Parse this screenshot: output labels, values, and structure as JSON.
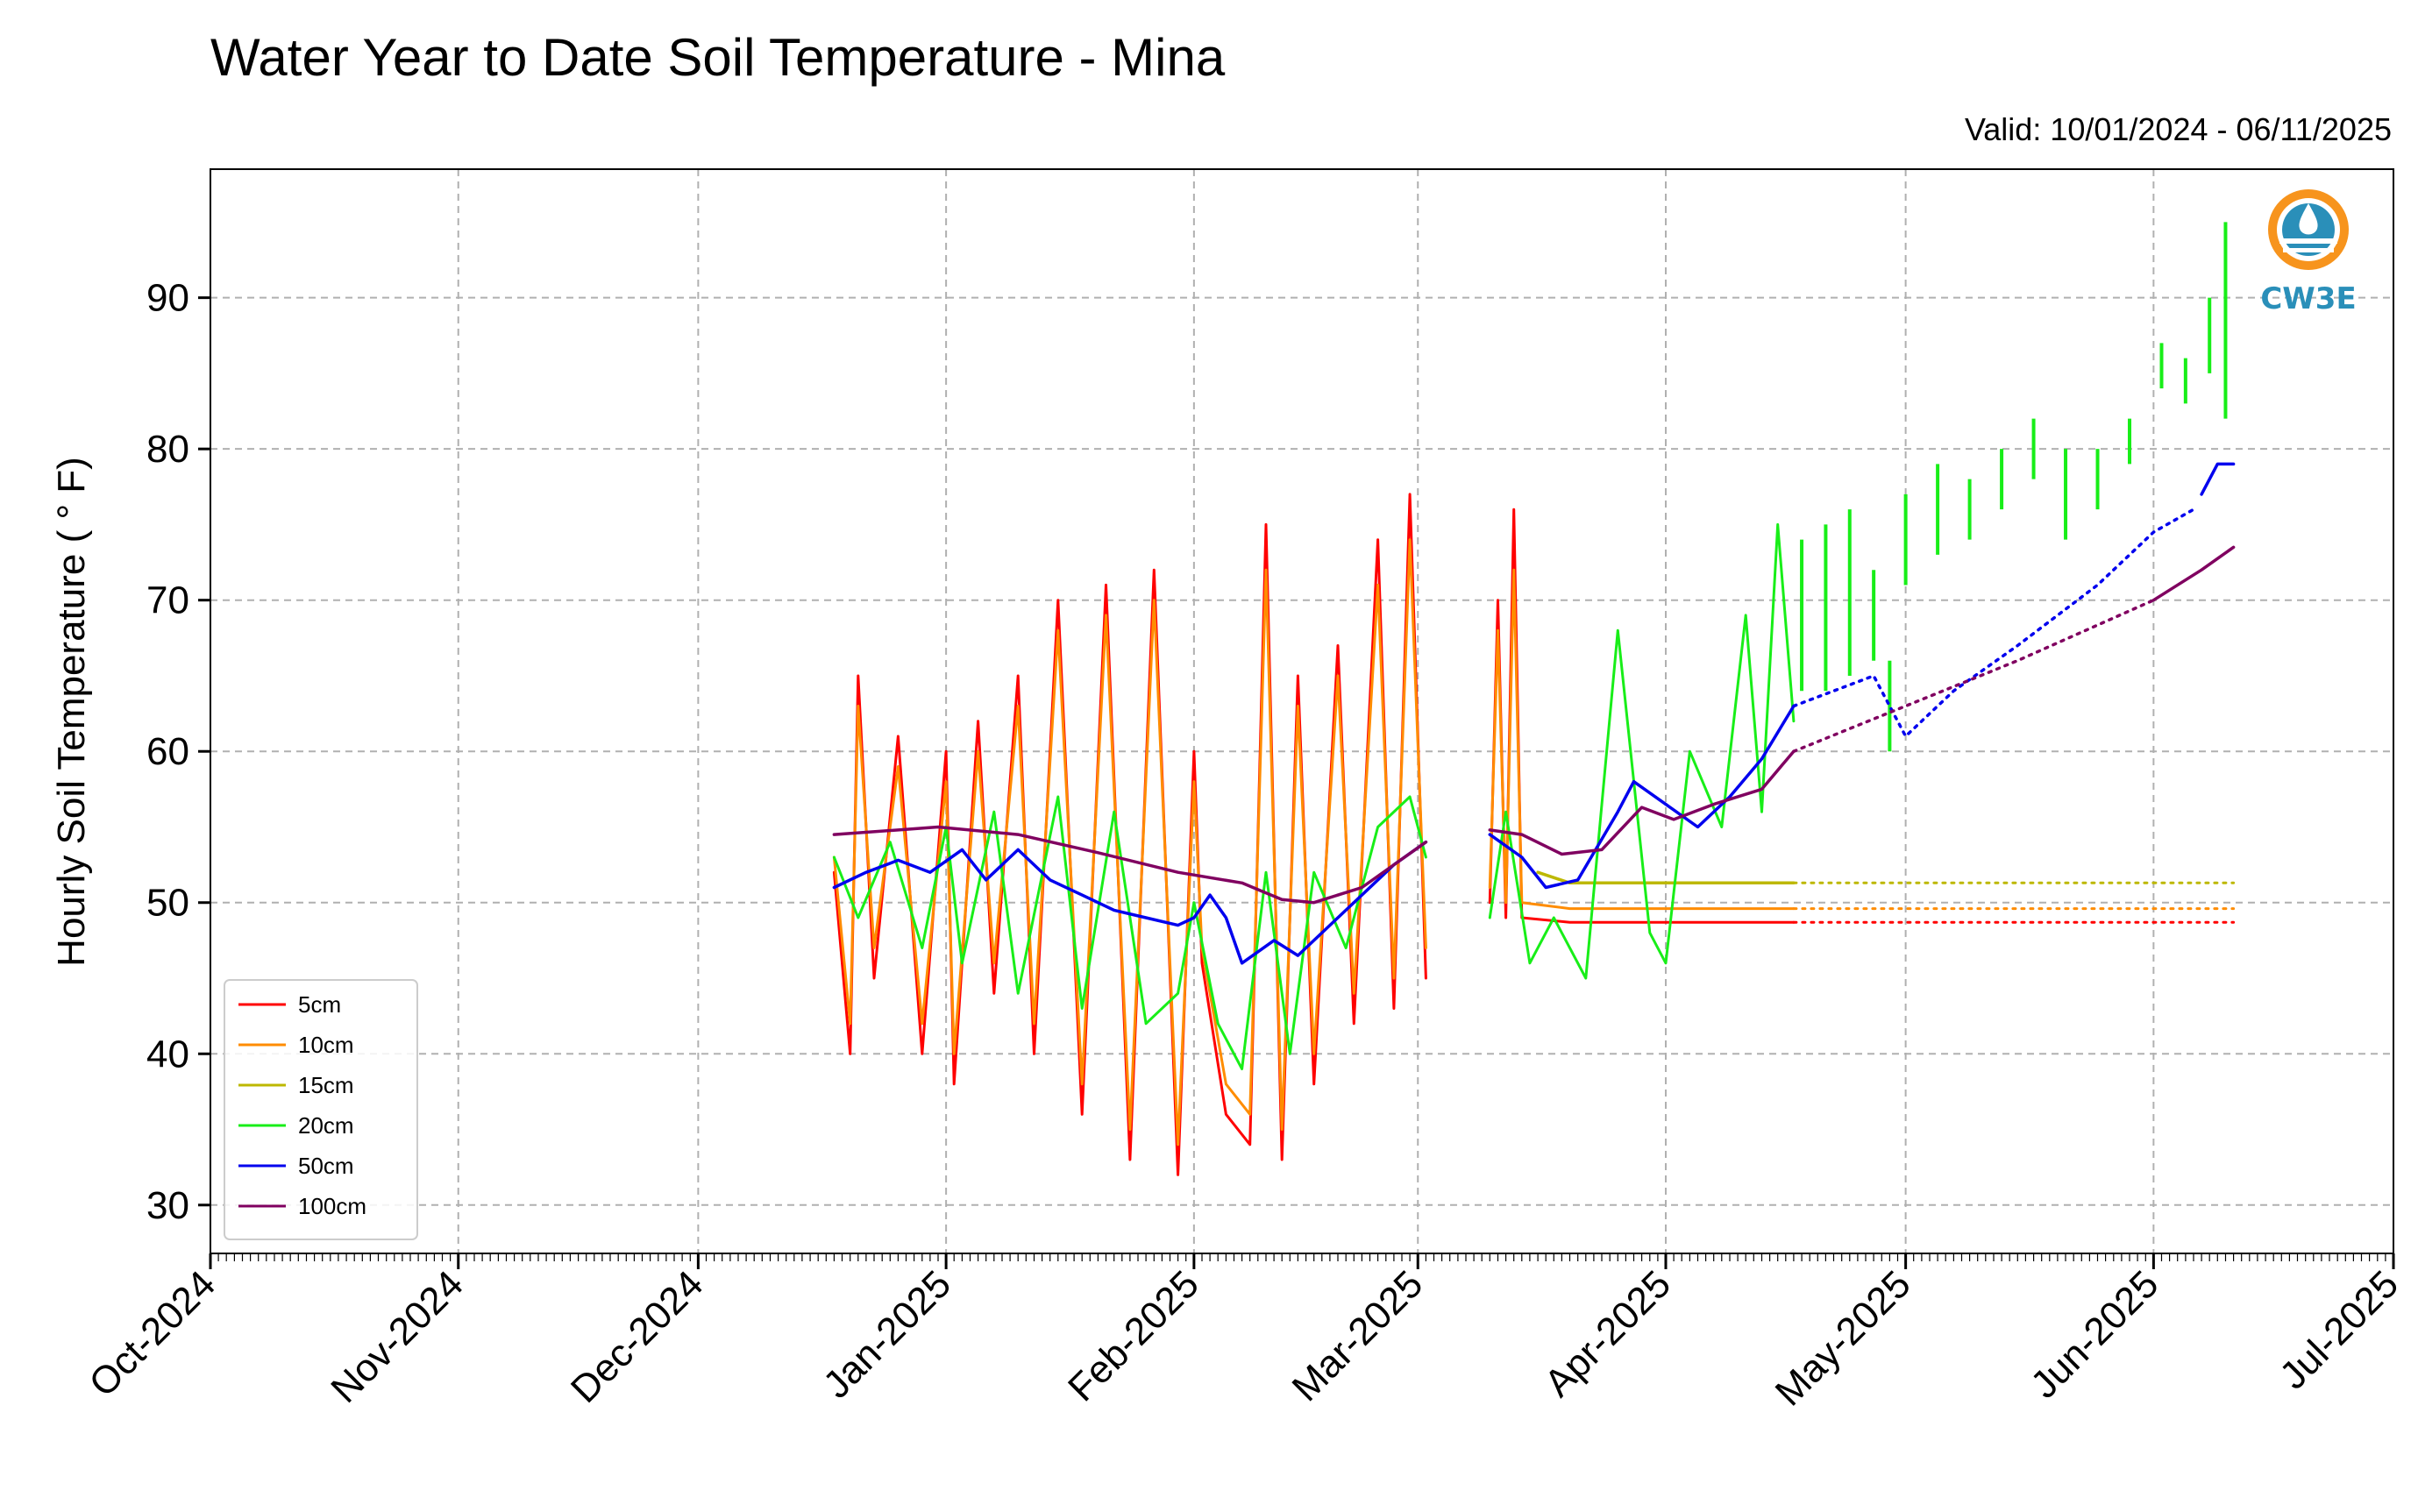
{
  "chart_data": {
    "type": "line",
    "title": "Water Year to Date Soil Temperature - Mina",
    "subtitle": "Valid: 10/01/2024 - 06/11/2025",
    "xlabel": "",
    "ylabel": "Hourly Soil Temperature ( ° F)",
    "ylim": [
      26.8,
      98.5
    ],
    "xlim": [
      "2024-10-01",
      "2025-07-01"
    ],
    "x_ticks": [
      "Oct-2024",
      "Nov-2024",
      "Dec-2024",
      "Jan-2025",
      "Feb-2025",
      "Mar-2025",
      "Apr-2025",
      "May-2025",
      "Jun-2025",
      "Jul-2025"
    ],
    "y_ticks": [
      30,
      40,
      50,
      60,
      70,
      80,
      90
    ],
    "grid": true,
    "legend_position": "lower-left",
    "logo": "CW3E",
    "series": [
      {
        "name": "5cm",
        "color": "#ff0000",
        "points": [
          [
            "2024-12-18",
            52
          ],
          [
            "2024-12-20",
            40
          ],
          [
            "2024-12-21",
            65
          ],
          [
            "2024-12-23",
            45
          ],
          [
            "2024-12-26",
            61
          ],
          [
            "2024-12-29",
            40
          ],
          [
            "2025-01-01",
            60
          ],
          [
            "2025-01-02",
            38
          ],
          [
            "2025-01-05",
            62
          ],
          [
            "2025-01-07",
            44
          ],
          [
            "2025-01-10",
            65
          ],
          [
            "2025-01-12",
            40
          ],
          [
            "2025-01-15",
            70
          ],
          [
            "2025-01-18",
            36
          ],
          [
            "2025-01-21",
            71
          ],
          [
            "2025-01-24",
            33
          ],
          [
            "2025-01-27",
            72
          ],
          [
            "2025-01-30",
            32
          ],
          [
            "2025-02-01",
            60
          ],
          [
            "2025-02-02",
            46
          ],
          [
            "2025-02-05",
            36
          ],
          [
            "2025-02-08",
            34
          ],
          [
            "2025-02-10",
            75
          ],
          [
            "2025-02-12",
            33
          ],
          [
            "2025-02-14",
            65
          ],
          [
            "2025-02-16",
            38
          ],
          [
            "2025-02-19",
            67
          ],
          [
            "2025-02-21",
            42
          ],
          [
            "2025-02-24",
            74
          ],
          [
            "2025-02-26",
            43
          ],
          [
            "2025-02-28",
            77
          ],
          [
            "2025-03-02",
            45
          ]
        ],
        "gap_after": "2025-03-02",
        "points_b": [
          [
            "2025-03-10",
            50
          ],
          [
            "2025-03-11",
            70
          ],
          [
            "2025-03-12",
            49
          ],
          [
            "2025-03-13",
            76
          ],
          [
            "2025-03-14",
            49
          ],
          [
            "2025-03-20",
            48.7
          ],
          [
            "2025-04-17",
            48.7
          ]
        ],
        "dotted_to": [
          "2025-06-11",
          48.7
        ]
      },
      {
        "name": "10cm",
        "color": "#ff8c00",
        "points": [
          [
            "2024-12-18",
            53
          ],
          [
            "2024-12-20",
            42
          ],
          [
            "2024-12-21",
            63
          ],
          [
            "2024-12-23",
            47
          ],
          [
            "2024-12-26",
            59
          ],
          [
            "2024-12-29",
            42
          ],
          [
            "2025-01-01",
            58
          ],
          [
            "2025-01-02",
            40
          ],
          [
            "2025-01-05",
            60
          ],
          [
            "2025-01-07",
            46
          ],
          [
            "2025-01-10",
            63
          ],
          [
            "2025-01-12",
            42
          ],
          [
            "2025-01-15",
            68
          ],
          [
            "2025-01-18",
            38
          ],
          [
            "2025-01-21",
            69
          ],
          [
            "2025-01-24",
            35
          ],
          [
            "2025-01-27",
            70
          ],
          [
            "2025-01-30",
            34
          ],
          [
            "2025-02-01",
            58
          ],
          [
            "2025-02-02",
            47
          ],
          [
            "2025-02-05",
            38
          ],
          [
            "2025-02-08",
            36
          ],
          [
            "2025-02-10",
            72
          ],
          [
            "2025-02-12",
            35
          ],
          [
            "2025-02-14",
            63
          ],
          [
            "2025-02-16",
            40
          ],
          [
            "2025-02-19",
            65
          ],
          [
            "2025-02-21",
            44
          ],
          [
            "2025-02-24",
            71
          ],
          [
            "2025-02-26",
            45
          ],
          [
            "2025-02-28",
            74
          ],
          [
            "2025-03-02",
            47
          ]
        ],
        "gap_after": "2025-03-02",
        "points_b": [
          [
            "2025-03-10",
            51
          ],
          [
            "2025-03-11",
            68
          ],
          [
            "2025-03-12",
            50
          ],
          [
            "2025-03-13",
            72
          ],
          [
            "2025-03-14",
            50
          ],
          [
            "2025-03-20",
            49.6
          ],
          [
            "2025-04-17",
            49.6
          ]
        ],
        "dotted_to": [
          "2025-06-11",
          49.6
        ]
      },
      {
        "name": "15cm",
        "color": "#bdb800",
        "points_b": [
          [
            "2025-03-16",
            52
          ],
          [
            "2025-03-20",
            51.3
          ],
          [
            "2025-04-17",
            51.3
          ]
        ],
        "dotted_to": [
          "2025-06-11",
          51.3
        ]
      },
      {
        "name": "20cm",
        "color": "#18ee18",
        "points": [
          [
            "2024-12-18",
            53
          ],
          [
            "2024-12-21",
            49
          ],
          [
            "2024-12-25",
            54
          ],
          [
            "2024-12-29",
            47
          ],
          [
            "2025-01-01",
            55
          ],
          [
            "2025-01-03",
            46
          ],
          [
            "2025-01-07",
            56
          ],
          [
            "2025-01-10",
            44
          ],
          [
            "2025-01-15",
            57
          ],
          [
            "2025-01-18",
            43
          ],
          [
            "2025-01-22",
            56
          ],
          [
            "2025-01-26",
            42
          ],
          [
            "2025-01-30",
            44
          ],
          [
            "2025-02-01",
            50
          ],
          [
            "2025-02-04",
            42
          ],
          [
            "2025-02-07",
            39
          ],
          [
            "2025-02-10",
            52
          ],
          [
            "2025-02-13",
            40
          ],
          [
            "2025-02-16",
            52
          ],
          [
            "2025-02-20",
            47
          ],
          [
            "2025-02-24",
            55
          ],
          [
            "2025-02-28",
            57
          ],
          [
            "2025-03-02",
            53
          ]
        ],
        "gap_after": "2025-03-02",
        "points_b": [
          [
            "2025-03-10",
            49
          ],
          [
            "2025-03-12",
            56
          ],
          [
            "2025-03-15",
            46
          ],
          [
            "2025-03-18",
            49
          ],
          [
            "2025-03-22",
            45
          ],
          [
            "2025-03-26",
            68
          ],
          [
            "2025-03-30",
            48
          ],
          [
            "2025-04-01",
            46
          ],
          [
            "2025-04-04",
            60
          ],
          [
            "2025-04-08",
            55
          ],
          [
            "2025-04-11",
            69
          ],
          [
            "2025-04-13",
            56
          ],
          [
            "2025-04-15",
            75
          ],
          [
            "2025-04-17",
            62
          ]
        ],
        "dashes": [
          [
            "2025-04-18",
            74,
            64
          ],
          [
            "2025-04-21",
            75,
            64
          ],
          [
            "2025-04-24",
            76,
            65
          ],
          [
            "2025-04-27",
            72,
            66
          ],
          [
            "2025-04-29",
            66,
            60
          ],
          [
            "2025-05-01",
            77,
            71
          ],
          [
            "2025-05-05",
            79,
            73
          ],
          [
            "2025-05-09",
            78,
            74
          ],
          [
            "2025-05-13",
            80,
            76
          ],
          [
            "2025-05-17",
            82,
            78
          ],
          [
            "2025-05-21",
            80,
            74
          ],
          [
            "2025-05-25",
            80,
            76
          ],
          [
            "2025-05-29",
            82,
            79
          ],
          [
            "2025-06-02",
            87,
            84
          ],
          [
            "2025-06-05",
            86,
            83
          ],
          [
            "2025-06-08",
            90,
            85
          ],
          [
            "2025-06-10",
            95,
            82
          ]
        ]
      },
      {
        "name": "50cm",
        "color": "#0000ee",
        "points": [
          [
            "2024-12-18",
            51
          ],
          [
            "2024-12-22",
            52
          ],
          [
            "2024-12-26",
            52.8
          ],
          [
            "2024-12-30",
            52
          ],
          [
            "2025-01-03",
            53.5
          ],
          [
            "2025-01-06",
            51.5
          ],
          [
            "2025-01-10",
            53.5
          ],
          [
            "2025-01-14",
            51.5
          ],
          [
            "2025-01-18",
            50.5
          ],
          [
            "2025-01-22",
            49.5
          ],
          [
            "2025-01-26",
            49
          ],
          [
            "2025-01-30",
            48.5
          ],
          [
            "2025-02-01",
            49
          ],
          [
            "2025-02-03",
            50.5
          ],
          [
            "2025-02-05",
            49
          ],
          [
            "2025-02-07",
            46
          ],
          [
            "2025-02-11",
            47.5
          ],
          [
            "2025-02-14",
            46.5
          ],
          [
            "2025-02-18",
            48.5
          ],
          [
            "2025-02-22",
            50.5
          ],
          [
            "2025-02-26",
            52.5
          ],
          [
            "2025-03-02",
            54
          ]
        ],
        "gap_after": "2025-03-02",
        "points_b": [
          [
            "2025-03-10",
            54.5
          ],
          [
            "2025-03-14",
            53
          ],
          [
            "2025-03-17",
            51
          ],
          [
            "2025-03-21",
            51.5
          ],
          [
            "2025-03-26",
            56
          ],
          [
            "2025-03-28",
            58
          ],
          [
            "2025-04-01",
            56.5
          ],
          [
            "2025-04-05",
            55
          ],
          [
            "2025-04-09",
            57
          ],
          [
            "2025-04-13",
            59.5
          ],
          [
            "2025-04-17",
            63
          ]
        ],
        "dotted": [
          [
            "2025-04-17",
            63
          ],
          [
            "2025-04-27",
            65
          ],
          [
            "2025-05-01",
            61
          ],
          [
            "2025-05-07",
            64
          ],
          [
            "2025-05-15",
            67
          ],
          [
            "2025-05-25",
            71
          ],
          [
            "2025-06-01",
            74.5
          ],
          [
            "2025-06-06",
            76
          ]
        ],
        "points_c": [
          [
            "2025-06-07",
            77
          ],
          [
            "2025-06-09",
            79
          ],
          [
            "2025-06-11",
            79
          ]
        ]
      },
      {
        "name": "100cm",
        "color": "#800060",
        "points": [
          [
            "2024-12-18",
            54.5
          ],
          [
            "2024-12-26",
            54.8
          ],
          [
            "2024-12-31",
            55
          ],
          [
            "2025-01-10",
            54.5
          ],
          [
            "2025-01-20",
            53.3
          ],
          [
            "2025-01-30",
            52
          ],
          [
            "2025-02-07",
            51.3
          ],
          [
            "2025-02-12",
            50.2
          ],
          [
            "2025-02-16",
            50
          ],
          [
            "2025-02-22",
            51
          ],
          [
            "2025-03-02",
            54
          ]
        ],
        "gap_after": "2025-03-02",
        "points_b": [
          [
            "2025-03-10",
            54.8
          ],
          [
            "2025-03-14",
            54.5
          ],
          [
            "2025-03-19",
            53.2
          ],
          [
            "2025-03-24",
            53.5
          ],
          [
            "2025-03-29",
            56.3
          ],
          [
            "2025-04-02",
            55.5
          ],
          [
            "2025-04-07",
            56.5
          ],
          [
            "2025-04-13",
            57.5
          ],
          [
            "2025-04-17",
            60
          ]
        ],
        "dotted": [
          [
            "2025-04-17",
            60
          ],
          [
            "2025-05-01",
            63
          ],
          [
            "2025-05-15",
            66
          ],
          [
            "2025-06-01",
            70
          ]
        ],
        "points_c": [
          [
            "2025-06-01",
            70
          ],
          [
            "2025-06-07",
            72
          ],
          [
            "2025-06-11",
            73.5
          ]
        ]
      }
    ]
  }
}
